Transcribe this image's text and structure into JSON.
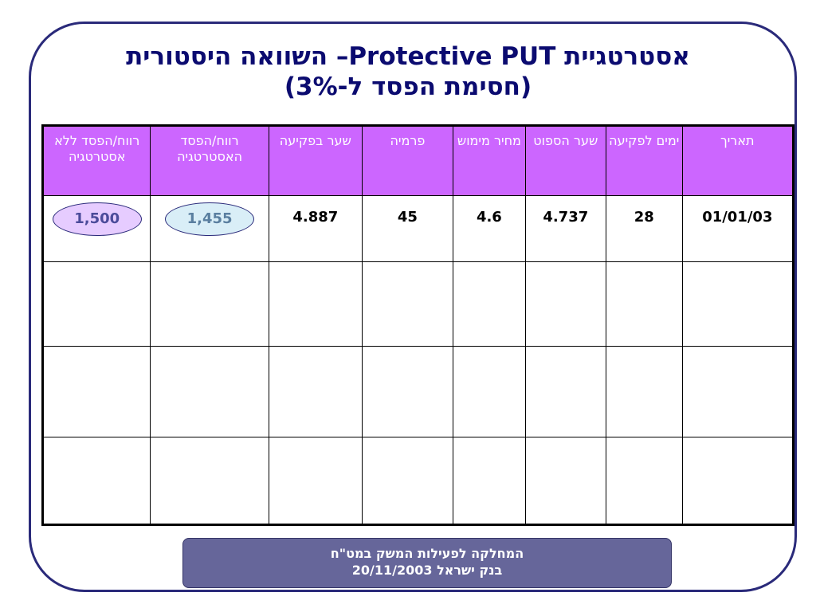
{
  "title": {
    "line1": "אסטרטגיית Protective PUT– השוואה היסטורית",
    "line2": "(חסימת הפסד ל-3%)"
  },
  "table": {
    "headers": [
      "תאריך",
      "ימים לפקיעה",
      "שער הספוט",
      "מחיר מימוש",
      "פרמיה",
      "שער בפקיעה",
      "רווח/הפסד האסטרטגיה",
      "רווח/הפסד ללא אסטרטגיה"
    ],
    "rows": [
      [
        "01/01/03",
        "28",
        "4.737",
        "4.6",
        "45",
        "4.887",
        "1,455",
        "1,500"
      ],
      [
        "",
        "",
        "",
        "",
        "",
        "",
        "",
        ""
      ],
      [
        "",
        "",
        "",
        "",
        "",
        "",
        "",
        ""
      ],
      [
        "",
        "",
        "",
        "",
        "",
        "",
        "",
        ""
      ]
    ]
  },
  "footer": {
    "line1": "המחלקה לפעילות המשק במט\"ח",
    "line2": "בנק ישראל  20/11/2003"
  },
  "colors": {
    "header_bg": "#cc66ff",
    "title": "#0b0b70",
    "footer_bg": "#66669a"
  }
}
